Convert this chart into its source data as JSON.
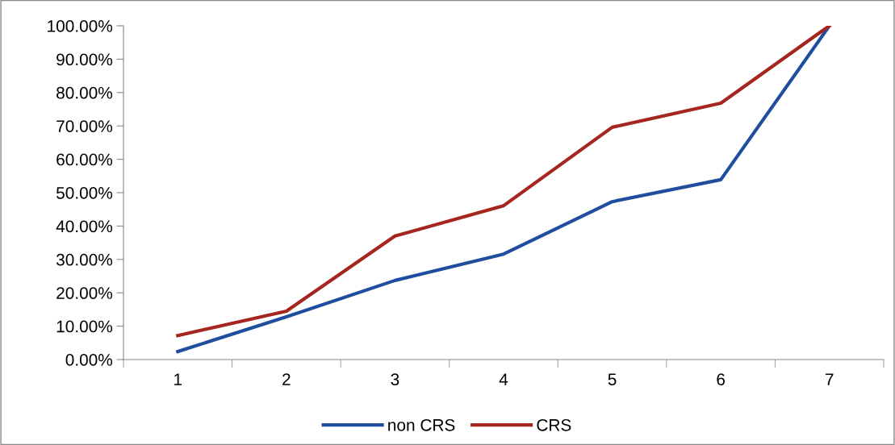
{
  "chart_data": {
    "type": "line",
    "categories": [
      "1",
      "2",
      "3",
      "4",
      "5",
      "6",
      "7"
    ],
    "series": [
      {
        "name": "non CRS",
        "color": "#1f4e9e",
        "values": [
          2.4,
          12.8,
          23.7,
          31.6,
          47.3,
          53.9,
          100
        ]
      },
      {
        "name": "CRS",
        "color": "#a5261f",
        "values": [
          7.2,
          14.5,
          37.0,
          46.1,
          69.6,
          76.8,
          100
        ]
      }
    ],
    "ylim": [
      0,
      100
    ],
    "yticks": [
      {
        "value": 0,
        "label": "0.00%"
      },
      {
        "value": 10,
        "label": "10.00%"
      },
      {
        "value": 20,
        "label": "20.00%"
      },
      {
        "value": 30,
        "label": "30.00%"
      },
      {
        "value": 40,
        "label": "40.00%"
      },
      {
        "value": 50,
        "label": "50.00%"
      },
      {
        "value": 60,
        "label": "60.00%"
      },
      {
        "value": 70,
        "label": "70.00%"
      },
      {
        "value": 80,
        "label": "80.00%"
      },
      {
        "value": 90,
        "label": "90.00%"
      },
      {
        "value": 100,
        "label": "100.00%"
      }
    ],
    "grid": false,
    "legend": "bottom",
    "marker": "none",
    "line_style": "solid"
  }
}
